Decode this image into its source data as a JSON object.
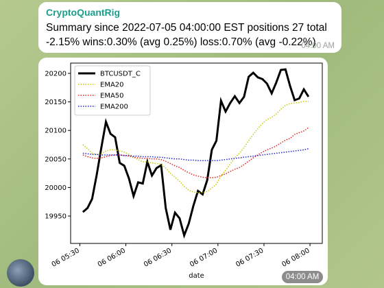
{
  "messages": [
    {
      "sender": "CryptoQuantRig",
      "lines": [
        "Summary since 2022-07-05 04:00:00 EST positions 27 total",
        "-2.15% wins:0.30% (avg 0.25%) loss:0.70% (avg -0.22%)"
      ],
      "time": "04:00 AM"
    },
    {
      "time": "04:00 AM"
    }
  ],
  "chart_data": {
    "type": "line",
    "xlabel": "date",
    "legend": "upper left",
    "grid": false,
    "x": [
      "06 05:32",
      "06 05:35",
      "06 05:38",
      "06 05:41",
      "06 05:44",
      "06 05:47",
      "06 05:50",
      "06 05:53",
      "06 05:56",
      "06 05:59",
      "06 06:02",
      "06 06:05",
      "06 06:08",
      "06 06:11",
      "06 06:14",
      "06 06:17",
      "06 06:20",
      "06 06:23",
      "06 06:26",
      "06 06:29",
      "06 06:32",
      "06 06:35",
      "06 06:38",
      "06 06:41",
      "06 06:44",
      "06 06:47",
      "06 06:50",
      "06 06:53",
      "06 06:56",
      "06 06:59",
      "06 07:02",
      "06 07:05",
      "06 07:08",
      "06 07:11",
      "06 07:14",
      "06 07:17",
      "06 07:20",
      "06 07:23",
      "06 07:26",
      "06 07:29",
      "06 07:32",
      "06 07:35",
      "06 07:38",
      "06 07:41",
      "06 07:44",
      "06 07:47",
      "06 07:50",
      "06 07:53",
      "06 07:56",
      "06 07:59"
    ],
    "xlim": [
      "06 05:24",
      "06 08:08"
    ],
    "xticks": [
      "06 05:30",
      "06 06:00",
      "06 06:30",
      "06 07:00",
      "06 07:30",
      "06 08:00"
    ],
    "ylim": [
      19902,
      20218
    ],
    "yticks": [
      19950,
      20000,
      20050,
      20100,
      20150,
      20200
    ],
    "series": [
      {
        "name": "BTCUSDT_C",
        "color": "#000000",
        "style": "solid",
        "width": 3,
        "values": [
          19957,
          19964,
          19980,
          20022,
          20070,
          20115,
          20094,
          20088,
          20043,
          20038,
          20016,
          19985,
          20009,
          20007,
          20045,
          20021,
          20034,
          20039,
          19964,
          19926,
          19956,
          19946,
          19916,
          19937,
          19968,
          19994,
          19988,
          20013,
          20066,
          20082,
          20152,
          20133,
          20148,
          20160,
          20148,
          20159,
          20194,
          20201,
          20193,
          20190,
          20182,
          20165,
          20184,
          20206,
          20207,
          20178,
          20153,
          20156,
          20172,
          20159
        ]
      },
      {
        "name": "EMA20",
        "color": "#c8c800",
        "style": "dotted",
        "width": 1.5,
        "values": [
          20075,
          20068,
          20060,
          20058,
          20059,
          20064,
          20066,
          20066,
          20064,
          20062,
          20058,
          20053,
          20049,
          20045,
          20045,
          20043,
          20042,
          20041,
          20034,
          20025,
          20018,
          20011,
          20002,
          19995,
          19992,
          19991,
          19991,
          19993,
          19999,
          20006,
          20020,
          20030,
          20041,
          20052,
          20060,
          20070,
          20082,
          20093,
          20103,
          20112,
          20119,
          20123,
          20129,
          20137,
          20144,
          20147,
          20148,
          20149,
          20151,
          20151
        ]
      },
      {
        "name": "EMA50",
        "color": "#e02020",
        "style": "dotted",
        "width": 1.5,
        "values": [
          20057,
          20054,
          20052,
          20051,
          20052,
          20054,
          20056,
          20057,
          20057,
          20056,
          20055,
          20053,
          20052,
          20051,
          20051,
          20050,
          20050,
          20049,
          20046,
          20042,
          20038,
          20035,
          20030,
          20026,
          20022,
          20020,
          20018,
          20017,
          20017,
          20018,
          20021,
          20024,
          20028,
          20032,
          20035,
          20040,
          20046,
          20052,
          20057,
          20062,
          20066,
          20069,
          20073,
          20078,
          20083,
          20086,
          20093,
          20096,
          20099,
          20105
        ]
      },
      {
        "name": "EMA200",
        "color": "#2020d0",
        "style": "dotted",
        "width": 1.5,
        "values": [
          20060,
          20059,
          20058,
          20058,
          20057,
          20057,
          20057,
          20057,
          20057,
          20056,
          20056,
          20055,
          20055,
          20054,
          20054,
          20054,
          20053,
          20053,
          20052,
          20051,
          20050,
          20050,
          20049,
          20048,
          20048,
          20047,
          20047,
          20047,
          20047,
          20047,
          20048,
          20049,
          20050,
          20051,
          20052,
          20053,
          20054,
          20055,
          20056,
          20057,
          20058,
          20059,
          20060,
          20061,
          20062,
          20063,
          20064,
          20065,
          20066,
          20068
        ]
      }
    ]
  }
}
